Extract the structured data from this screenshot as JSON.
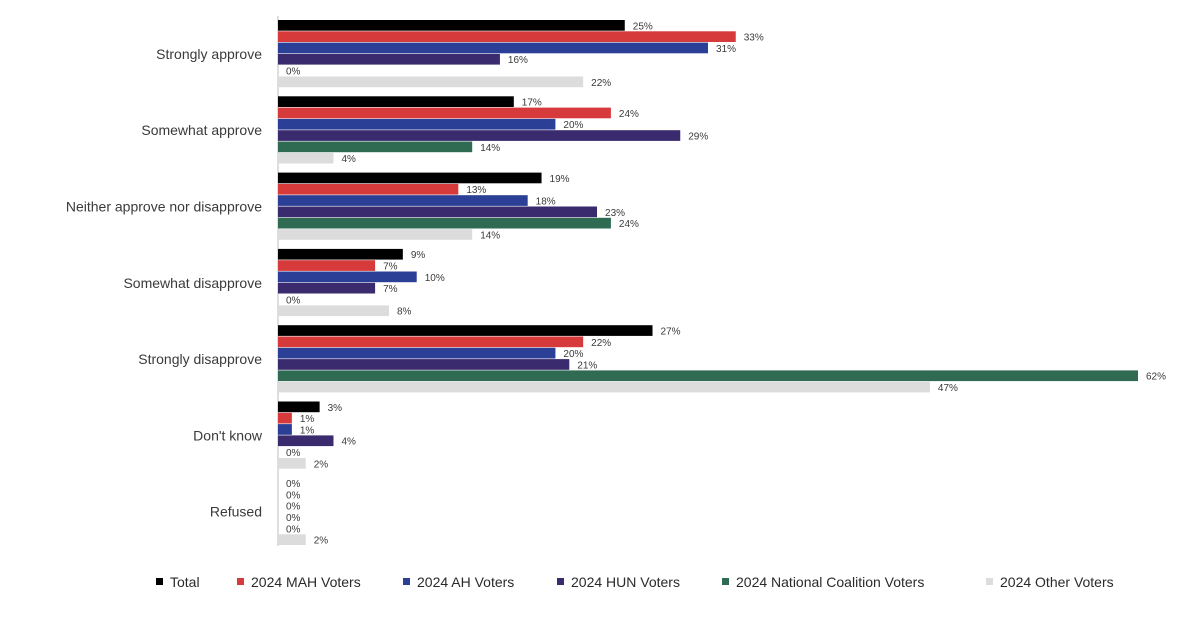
{
  "chart_data": {
    "type": "bar",
    "orientation": "horizontal",
    "title": "",
    "xlabel": "",
    "ylabel": "",
    "xlim": [
      0,
      62
    ],
    "grid": false,
    "legend_position": "bottom",
    "categories": [
      "Strongly approve",
      "Somewhat approve",
      "Neither approve nor disapprove",
      "Somewhat disapprove",
      "Strongly disapprove",
      "Don't know",
      "Refused"
    ],
    "series": [
      {
        "name": "Total",
        "color": "#000000",
        "values": [
          25,
          17,
          19,
          9,
          27,
          3,
          0
        ]
      },
      {
        "name": "2024 MAH Voters",
        "color": "#d63a3a",
        "values": [
          33,
          24,
          13,
          7,
          22,
          1,
          0
        ]
      },
      {
        "name": "2024 AH Voters",
        "color": "#2c3f96",
        "values": [
          31,
          20,
          18,
          10,
          20,
          1,
          0
        ]
      },
      {
        "name": "2024 HUN Voters",
        "color": "#3a2a6e",
        "values": [
          16,
          29,
          23,
          7,
          21,
          4,
          0
        ]
      },
      {
        "name": "2024 National Coalition Voters",
        "color": "#2f6b52",
        "values": [
          0,
          14,
          24,
          0,
          62,
          0,
          0
        ]
      },
      {
        "name": "2024 Other Voters",
        "color": "#dcdcdc",
        "values": [
          22,
          4,
          14,
          8,
          47,
          2,
          2
        ]
      }
    ],
    "value_suffix": "%"
  }
}
